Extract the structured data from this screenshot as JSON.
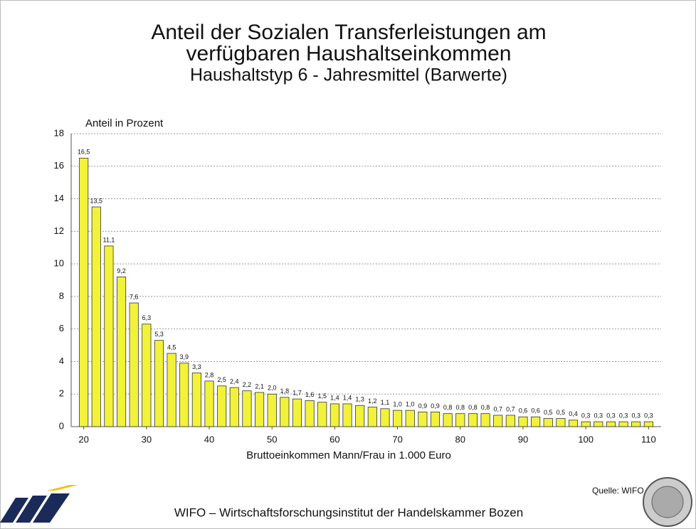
{
  "chart_data": {
    "type": "bar",
    "title": [
      "Anteil der Sozialen Transferleistungen am",
      "verfügbaren Haushaltseinkommen"
    ],
    "subtitle": "Haushaltstyp 6 - Jahresmittel (Barwerte)",
    "ylabel": "Anteil in Prozent",
    "xlabel": "Bruttoeinkommen Mann/Frau in 1.000 Euro",
    "x": [
      20,
      22,
      24,
      26,
      28,
      30,
      32,
      34,
      36,
      38,
      40,
      42,
      44,
      46,
      48,
      50,
      52,
      54,
      56,
      58,
      60,
      62,
      64,
      66,
      68,
      70,
      72,
      74,
      76,
      78,
      80,
      82,
      84,
      86,
      88,
      90,
      92,
      94,
      96,
      98,
      100,
      102,
      104,
      106,
      108,
      110
    ],
    "values": [
      16.5,
      13.5,
      11.1,
      9.2,
      7.6,
      6.3,
      5.3,
      4.5,
      3.9,
      3.3,
      2.8,
      2.5,
      2.4,
      2.2,
      2.1,
      2.0,
      1.8,
      1.7,
      1.6,
      1.5,
      1.4,
      1.4,
      1.3,
      1.2,
      1.1,
      1.0,
      1.0,
      0.9,
      0.9,
      0.8,
      0.8,
      0.8,
      0.8,
      0.7,
      0.7,
      0.6,
      0.6,
      0.5,
      0.5,
      0.4,
      0.3,
      0.3,
      0.3,
      0.3,
      0.3,
      0.3
    ],
    "value_labels": [
      "16,5",
      "13,5",
      "11,1",
      "9,2",
      "7,6",
      "6,3",
      "5,3",
      "4,5",
      "3,9",
      "3,3",
      "2,8",
      "2,5",
      "2,4",
      "2,2",
      "2,1",
      "2,0",
      "1,8",
      "1,7",
      "1,6",
      "1,5",
      "1,4",
      "1,4",
      "1,3",
      "1,2",
      "1,1",
      "1,0",
      "1,0",
      "0,9",
      "0,9",
      "0,8",
      "0,8",
      "0,8",
      "0,8",
      "0,7",
      "0,7",
      "0,6",
      "0,6",
      "0,5",
      "0,5",
      "0,4",
      "0,3",
      "0,3",
      "0,3",
      "0,3",
      "0,3",
      "0,3"
    ],
    "color": "#f2f23a",
    "xlim": [
      18,
      112
    ],
    "xticks": [
      20,
      30,
      40,
      50,
      60,
      70,
      80,
      90,
      100,
      110
    ],
    "ylim": [
      0,
      18
    ],
    "yticks": [
      0,
      2,
      4,
      6,
      8,
      10,
      12,
      14,
      16,
      18
    ],
    "grid": true
  },
  "source": "Quelle: WIFO",
  "footer": "WIFO – Wirtschaftsforschungsinstitut der Handelskammer Bozen"
}
